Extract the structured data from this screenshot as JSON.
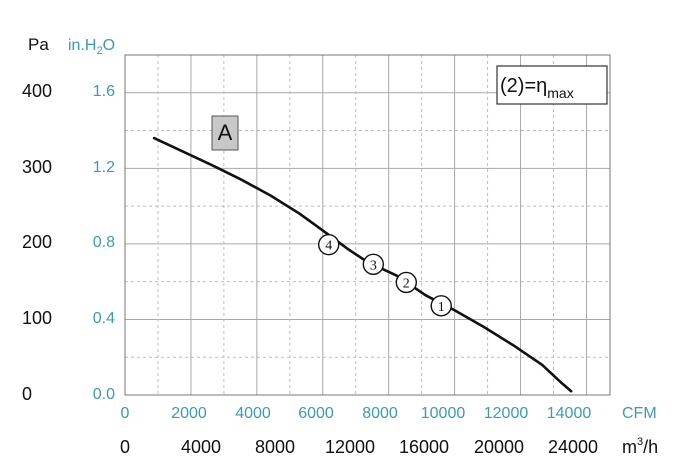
{
  "chart_data": {
    "type": "line",
    "series": [
      {
        "name": "A",
        "x_m3h": [
          1500,
          3000,
          4500,
          6000,
          7500,
          9000,
          10500,
          11500,
          12500,
          14000,
          15500,
          17000,
          18500,
          20000,
          21500,
          22500,
          23000
        ],
        "y_pa": [
          340,
          322,
          304,
          285,
          264,
          240,
          212,
          193,
          176,
          158,
          132,
          112,
          90,
          66,
          40,
          16,
          5
        ]
      }
    ],
    "operating_points": [
      {
        "label": "1",
        "x_m3h": 16300,
        "y_pa": 118
      },
      {
        "label": "2",
        "x_m3h": 14500,
        "y_pa": 149
      },
      {
        "label": "3",
        "x_m3h": 12800,
        "y_pa": 173
      },
      {
        "label": "4",
        "x_m3h": 10500,
        "y_pa": 199
      }
    ],
    "y_left": {
      "unit": "Pa",
      "range": [
        0,
        450
      ],
      "ticks": [
        "0",
        "100",
        "200",
        "300",
        "400"
      ],
      "tick_values": [
        0,
        100,
        200,
        300,
        400
      ]
    },
    "y_right": {
      "unit": "in.H",
      "unit_sub": "2",
      "unit_end": "O",
      "ticks": [
        "0.0",
        "0.4",
        "0.8",
        "1.2",
        "1.6"
      ]
    },
    "x_top": {
      "unit": "CFM",
      "range_cfm": [
        0,
        14000
      ],
      "ticks": [
        "0",
        "2000",
        "4000",
        "6000",
        "8000",
        "10000",
        "12000",
        "14000"
      ]
    },
    "x_bottom": {
      "unit": "m",
      "unit_sup": "3",
      "unit_end": "/h",
      "range": [
        0,
        25000
      ],
      "ticks": [
        "0",
        "4000",
        "8000",
        "12000",
        "16000",
        "20000",
        "24000"
      ],
      "tick_values": [
        0,
        4000,
        8000,
        12000,
        16000,
        20000,
        24000
      ]
    },
    "curve_label": "A",
    "legend": {
      "prefix": "(2)=η",
      "sub": "max"
    },
    "grid": true
  }
}
